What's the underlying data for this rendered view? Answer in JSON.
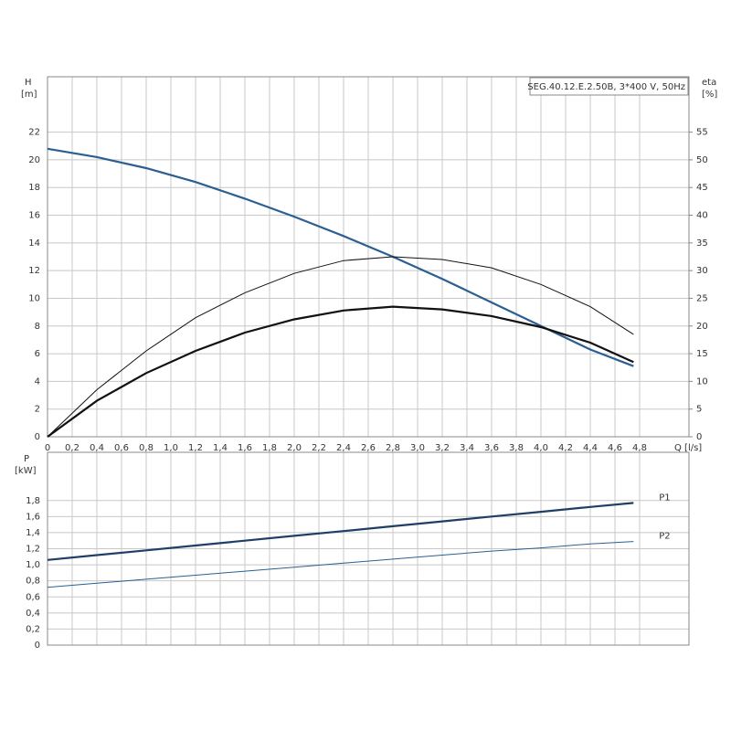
{
  "chart_data": [
    {
      "type": "line",
      "title": "SEG.40.12.E.2.50B, 3*400 V, 50Hz",
      "y_label": "H",
      "y_unit": "[m]",
      "y2_label": "eta",
      "y2_unit": "[%]",
      "x_label": "Q [l/s]",
      "x": [
        0,
        0.4,
        0.8,
        1.2,
        1.6,
        2.0,
        2.4,
        2.8,
        3.2,
        3.6,
        4.0,
        4.4,
        4.75
      ],
      "xlim": [
        0,
        5.2
      ],
      "xticks": [
        0,
        {
          "value": 0.2,
          "label": "0,2"
        },
        {
          "value": 0.4,
          "label": "0,4"
        },
        {
          "value": 0.6,
          "label": "0,6"
        },
        {
          "value": 0.8,
          "label": "0,8"
        },
        {
          "value": 1.0,
          "label": "1,0"
        },
        {
          "value": 1.2,
          "label": "1,2"
        },
        {
          "value": 1.4,
          "label": "1,4"
        },
        {
          "value": 1.6,
          "label": "1,6"
        },
        {
          "value": 1.8,
          "label": "1,8"
        },
        {
          "value": 2.0,
          "label": "2,0"
        },
        {
          "value": 2.2,
          "label": "2,2"
        },
        {
          "value": 2.4,
          "label": "2,4"
        },
        {
          "value": 2.6,
          "label": "2,6"
        },
        {
          "value": 2.8,
          "label": "2,8"
        },
        {
          "value": 3.0,
          "label": "3,0"
        },
        {
          "value": 3.2,
          "label": "3,2"
        },
        {
          "value": 3.4,
          "label": "3,4"
        },
        {
          "value": 3.6,
          "label": "3,6"
        },
        {
          "value": 3.8,
          "label": "3,8"
        },
        {
          "value": 4.0,
          "label": "4,0"
        },
        {
          "value": 4.2,
          "label": "4,2"
        },
        {
          "value": 4.4,
          "label": "4,4"
        },
        {
          "value": 4.6,
          "label": "4,6"
        },
        {
          "value": 4.8,
          "label": "4,8"
        }
      ],
      "ylim": [
        0,
        26
      ],
      "yticks": [
        0,
        2,
        4,
        6,
        8,
        10,
        12,
        14,
        16,
        18,
        20,
        22
      ],
      "y2lim": [
        0,
        65
      ],
      "y2ticks": [
        0,
        5,
        10,
        15,
        20,
        25,
        30,
        35,
        40,
        45,
        50,
        55
      ],
      "grid": true,
      "series": [
        {
          "color": "#2b5f91",
          "width": 2.2,
          "values": [
            20.8,
            20.2,
            19.4,
            18.4,
            17.2,
            15.9,
            14.5,
            13.0,
            11.4,
            9.7,
            8.0,
            6.3,
            5.1
          ]
        },
        {
          "color": "#111111",
          "width": 1,
          "axis": "y2",
          "values": [
            0,
            8.5,
            15.5,
            21.5,
            26,
            29.5,
            31.8,
            32.5,
            32,
            30.5,
            27.5,
            23.5,
            18.5
          ]
        },
        {
          "color": "#111111",
          "width": 2.2,
          "axis": "y2",
          "values": [
            0,
            6.5,
            11.5,
            15.5,
            18.8,
            21.2,
            22.8,
            23.5,
            23,
            21.8,
            19.8,
            17,
            13.5
          ]
        }
      ]
    },
    {
      "type": "line",
      "y_label": "P",
      "y_unit": "[kW]",
      "x": [
        0,
        0.4,
        0.8,
        1.2,
        1.6,
        2.0,
        2.4,
        2.8,
        3.2,
        3.6,
        4.0,
        4.4,
        4.75
      ],
      "xlim": [
        0,
        5.2
      ],
      "ylim": [
        0,
        2.4
      ],
      "yticks": [
        0,
        {
          "value": 0.2,
          "label": "0,2"
        },
        {
          "value": 0.4,
          "label": "0,4"
        },
        {
          "value": 0.6,
          "label": "0,6"
        },
        {
          "value": 0.8,
          "label": "0,8"
        },
        {
          "value": 1.0,
          "label": "1,0"
        },
        {
          "value": 1.2,
          "label": "1,2"
        },
        {
          "value": 1.4,
          "label": "1,4"
        },
        {
          "value": 1.6,
          "label": "1,6"
        },
        {
          "value": 1.8,
          "label": "1,8"
        }
      ],
      "grid": true,
      "series": [
        {
          "name": "P1",
          "color": "#1f3f66",
          "width": 2.2,
          "values": [
            1.06,
            1.12,
            1.18,
            1.24,
            1.3,
            1.36,
            1.42,
            1.48,
            1.54,
            1.6,
            1.66,
            1.72,
            1.77
          ]
        },
        {
          "name": "P2",
          "color": "#2b5f91",
          "width": 1,
          "values": [
            0.72,
            0.77,
            0.82,
            0.87,
            0.92,
            0.97,
            1.02,
            1.07,
            1.12,
            1.17,
            1.21,
            1.26,
            1.29
          ]
        }
      ]
    }
  ]
}
